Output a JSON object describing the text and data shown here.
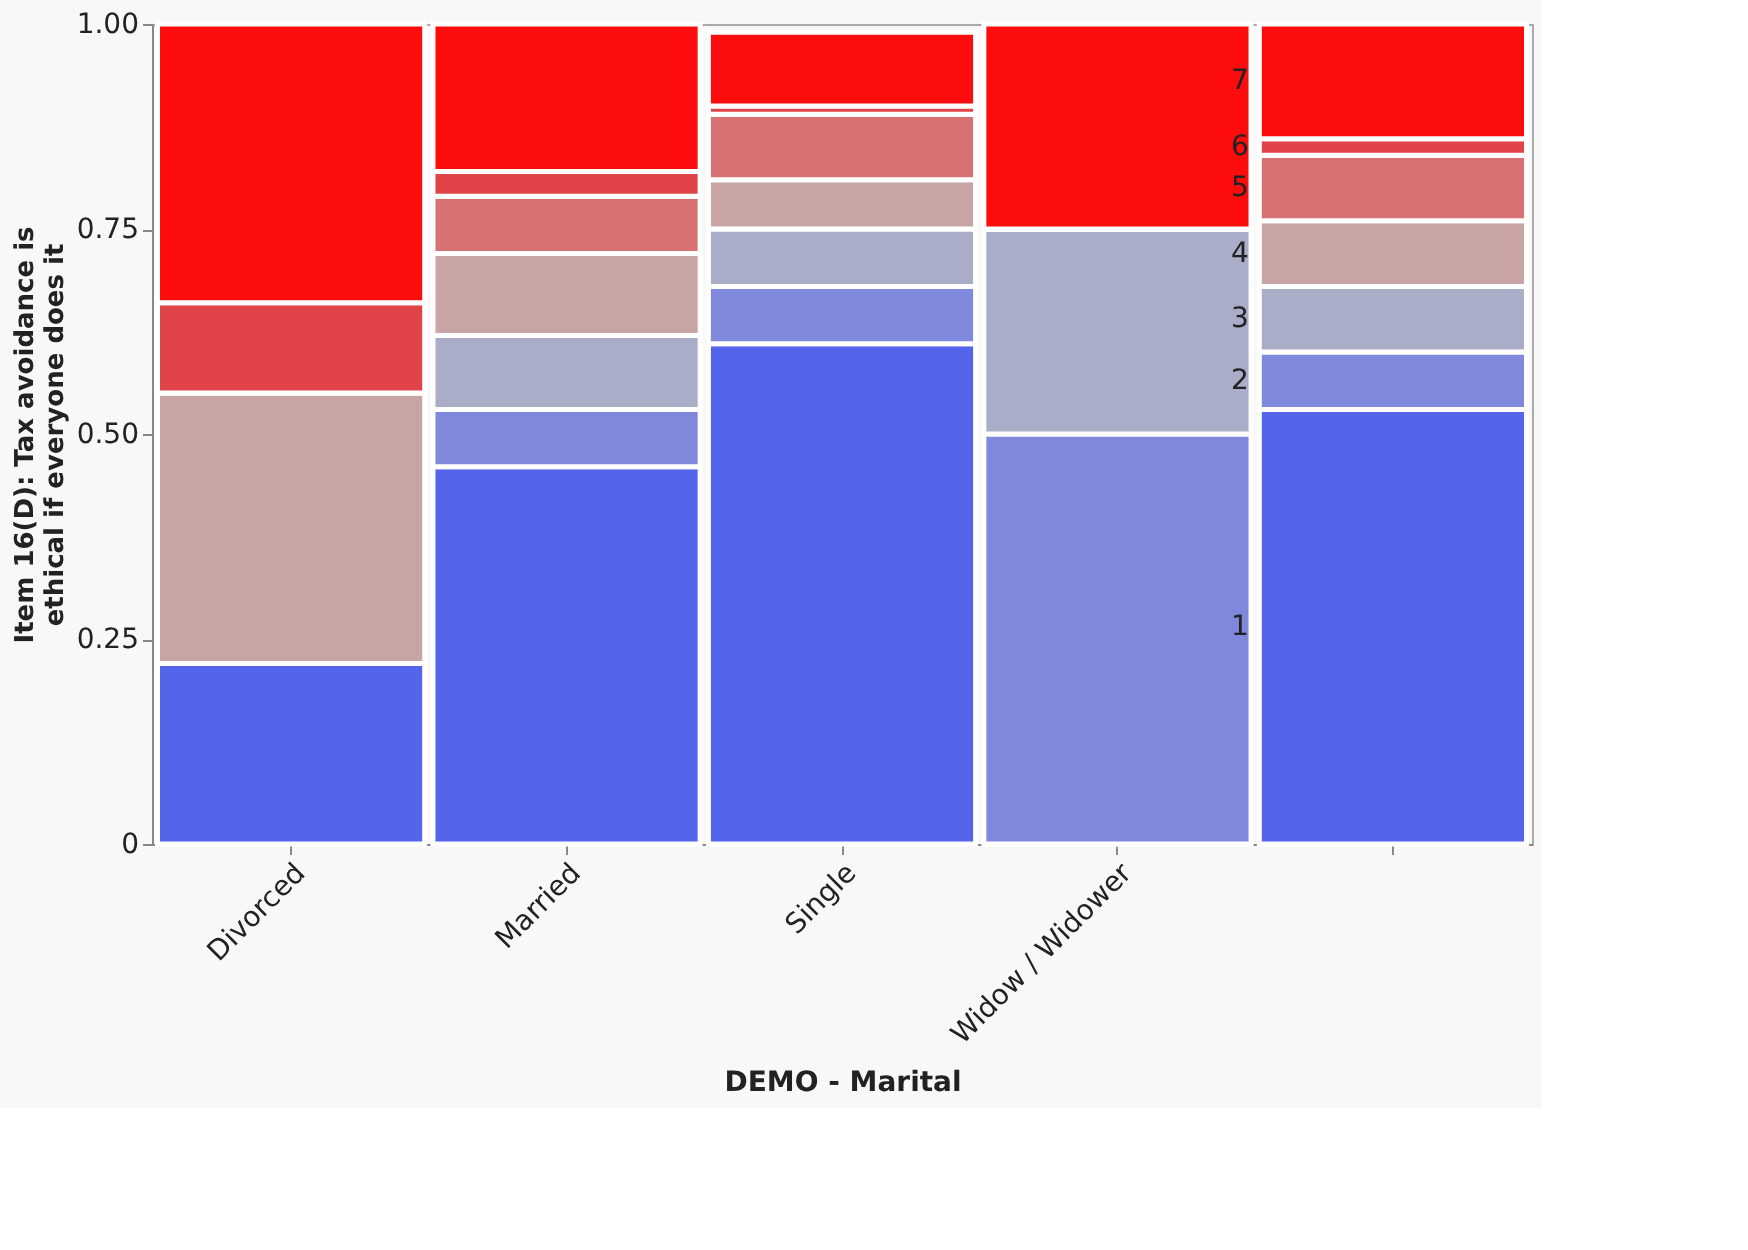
{
  "chart_data": {
    "type": "bar",
    "stacked": true,
    "xlabel": "DEMO - Marital",
    "ylabel": "Item 16(D): Tax avoidance is ethical if everyone does it",
    "categories": [
      "Divorced",
      "Married",
      "Single",
      "Widow / Widower",
      null
    ],
    "series": [
      {
        "name": "1",
        "color": "#5464eb",
        "values": [
          0.22,
          0.46,
          0.61,
          0,
          0.53
        ]
      },
      {
        "name": "2",
        "color": "#8088dc",
        "values": [
          0,
          0.07,
          0.07,
          0.5,
          0.07
        ]
      },
      {
        "name": "3",
        "color": "#a9adc8",
        "values": [
          0,
          0.09,
          0.07,
          0.25,
          0.08
        ]
      },
      {
        "name": "4",
        "color": "#c8a4a4",
        "values": [
          0.33,
          0.1,
          0.06,
          0,
          0.08
        ]
      },
      {
        "name": "5",
        "color": "#d87272",
        "values": [
          0,
          0.07,
          0.08,
          0,
          0.08
        ]
      },
      {
        "name": "6",
        "color": "#e04448",
        "values": [
          0.11,
          0.03,
          0.01,
          0,
          0.02
        ]
      },
      {
        "name": "7",
        "color": "#fc0c0c",
        "values": [
          0.34,
          0.18,
          0.09,
          0.25,
          0.14
        ]
      }
    ],
    "ylim": [
      0,
      1
    ],
    "yticks": [
      0,
      {
        "value": 0.25,
        "label": "0.25"
      },
      {
        "value": 0.5,
        "label": "0.50"
      },
      {
        "value": 0.75,
        "label": "0.75"
      },
      {
        "value": 1,
        "label": "1.00"
      }
    ],
    "grid": false,
    "legend": false
  }
}
